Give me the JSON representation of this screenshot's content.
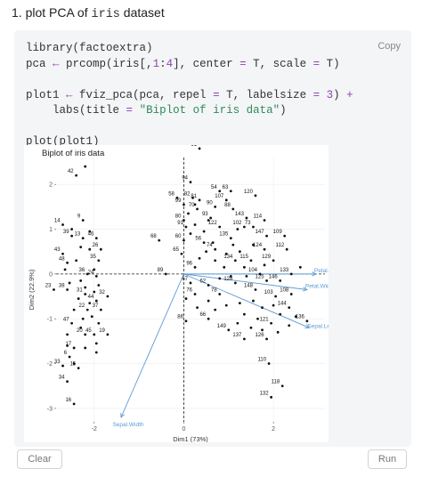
{
  "heading": {
    "prefix": "1. plot PCA of",
    "code": "iris",
    "suffix": "dataset"
  },
  "code_panel": {
    "copy_label": "Copy",
    "lines": [
      [
        [
          "library(factoextra)",
          ""
        ]
      ],
      [
        [
          "pca ",
          ""
        ],
        [
          "←",
          "op"
        ],
        [
          " prcomp(iris[,",
          ""
        ],
        [
          "1",
          "num"
        ],
        [
          ":",
          ""
        ],
        [
          "4",
          "num"
        ],
        [
          "], center ",
          ""
        ],
        [
          "=",
          "op"
        ],
        [
          " T, scale ",
          ""
        ],
        [
          "=",
          "op"
        ],
        [
          " T)",
          ""
        ]
      ],
      [
        [
          "",
          ""
        ]
      ],
      [
        [
          "plot1 ",
          ""
        ],
        [
          "←",
          "op"
        ],
        [
          " fviz_pca(pca, repel ",
          ""
        ],
        [
          "=",
          "op"
        ],
        [
          " T, labelsize ",
          ""
        ],
        [
          "=",
          "op"
        ],
        [
          " ",
          ""
        ],
        [
          "3",
          "num"
        ],
        [
          ") ",
          ""
        ],
        [
          "+",
          "op"
        ]
      ],
      [
        [
          "    labs(title ",
          ""
        ],
        [
          "=",
          "op"
        ],
        [
          " ",
          ""
        ],
        [
          "\"Biplot of iris data\"",
          "str"
        ],
        [
          ")",
          ""
        ]
      ],
      [
        [
          "",
          ""
        ]
      ],
      [
        [
          "plot(plot1)",
          ""
        ]
      ]
    ]
  },
  "chart_data": {
    "type": "scatter",
    "title": "Biplot of iris data",
    "xlabel": "Dim1 (73%)",
    "ylabel": "Dim2 (22.9%)",
    "xlim": [
      -2.85,
      3.15
    ],
    "ylim": [
      -3.3,
      2.6
    ],
    "x_ticks": [
      -2,
      0,
      2
    ],
    "y_ticks": [
      -3,
      -2,
      -1,
      0,
      1,
      2
    ],
    "reference_lines": {
      "x": 0,
      "y": 0
    },
    "arrow_color": "#5b9bd5",
    "point_color": "#111111",
    "variables": [
      {
        "name": "Sepal.Width",
        "x": -1.4,
        "y": -3.2
      },
      {
        "name": "Sepal.Length",
        "x": 2.8,
        "y": -1.2
      },
      {
        "name": "Petal.Width",
        "x": 2.75,
        "y": -0.35
      },
      {
        "name": "Petal.Length",
        "x": 2.95,
        "y": 0.0
      }
    ],
    "labeled_points": [
      {
        "label": "42",
        "x": -2.4,
        "y": 2.2
      },
      {
        "label": "94",
        "x": 0.15,
        "y": 2.05
      },
      {
        "label": "61",
        "x": 0.35,
        "y": 2.8
      },
      {
        "label": "58",
        "x": -0.15,
        "y": 1.7
      },
      {
        "label": "82",
        "x": 0.2,
        "y": 1.7
      },
      {
        "label": "81",
        "x": 0.35,
        "y": 1.65
      },
      {
        "label": "54",
        "x": 0.8,
        "y": 1.85
      },
      {
        "label": "63",
        "x": 1.05,
        "y": 1.85
      },
      {
        "label": "107",
        "x": 0.95,
        "y": 1.65
      },
      {
        "label": "120",
        "x": 1.6,
        "y": 1.75
      },
      {
        "label": "99",
        "x": 0.0,
        "y": 1.55
      },
      {
        "label": "70",
        "x": 0.3,
        "y": 1.45
      },
      {
        "label": "90",
        "x": 0.7,
        "y": 1.5
      },
      {
        "label": "88",
        "x": 1.1,
        "y": 1.45
      },
      {
        "label": "9",
        "x": -2.25,
        "y": 1.2
      },
      {
        "label": "14",
        "x": -2.7,
        "y": 1.1
      },
      {
        "label": "13",
        "x": -2.25,
        "y": 0.8
      },
      {
        "label": "46",
        "x": -1.95,
        "y": 0.8
      },
      {
        "label": "39",
        "x": -2.5,
        "y": 0.85
      },
      {
        "label": "80",
        "x": 0.0,
        "y": 1.2
      },
      {
        "label": "91",
        "x": 0.05,
        "y": 1.05
      },
      {
        "label": "93",
        "x": 0.6,
        "y": 1.25
      },
      {
        "label": "122",
        "x": 0.8,
        "y": 1.05
      },
      {
        "label": "102",
        "x": 1.35,
        "y": 1.05
      },
      {
        "label": "73",
        "x": 1.55,
        "y": 1.05
      },
      {
        "label": "114",
        "x": 1.8,
        "y": 1.2
      },
      {
        "label": "143",
        "x": 1.4,
        "y": 1.25
      },
      {
        "label": "109",
        "x": 2.25,
        "y": 0.85
      },
      {
        "label": "43",
        "x": -2.7,
        "y": 0.45
      },
      {
        "label": "26",
        "x": -1.85,
        "y": 0.55
      },
      {
        "label": "48",
        "x": -2.6,
        "y": 0.25
      },
      {
        "label": "35",
        "x": -1.9,
        "y": 0.3
      },
      {
        "label": "68",
        "x": -0.55,
        "y": 0.75
      },
      {
        "label": "60",
        "x": 0.0,
        "y": 0.75
      },
      {
        "label": "65",
        "x": -0.05,
        "y": 0.45
      },
      {
        "label": "56",
        "x": 0.45,
        "y": 0.7
      },
      {
        "label": "74",
        "x": 0.7,
        "y": 0.55
      },
      {
        "label": "135",
        "x": 1.05,
        "y": 0.8
      },
      {
        "label": "147",
        "x": 1.85,
        "y": 0.85
      },
      {
        "label": "112",
        "x": 2.3,
        "y": 0.55
      },
      {
        "label": "124",
        "x": 1.8,
        "y": 0.55
      },
      {
        "label": "115",
        "x": 1.5,
        "y": 0.3
      },
      {
        "label": "129",
        "x": 2.0,
        "y": 0.3
      },
      {
        "label": "36",
        "x": -2.15,
        "y": 0.0
      },
      {
        "label": "24",
        "x": -1.95,
        "y": -0.05
      },
      {
        "label": "89",
        "x": -0.4,
        "y": 0.0
      },
      {
        "label": "96",
        "x": 0.25,
        "y": 0.15
      },
      {
        "label": "134",
        "x": 1.15,
        "y": 0.3
      },
      {
        "label": "104",
        "x": 1.7,
        "y": 0.0
      },
      {
        "label": "133",
        "x": 2.4,
        "y": 0.0
      },
      {
        "label": "23",
        "x": -2.9,
        "y": -0.35
      },
      {
        "label": "38",
        "x": -2.6,
        "y": -0.35
      },
      {
        "label": "67",
        "x": 0.15,
        "y": -0.2
      },
      {
        "label": "62",
        "x": 0.55,
        "y": -0.25
      },
      {
        "label": "128",
        "x": 1.15,
        "y": -0.2
      },
      {
        "label": "125",
        "x": 1.85,
        "y": -0.15
      },
      {
        "label": "146",
        "x": 2.15,
        "y": -0.15
      },
      {
        "label": "31",
        "x": -2.2,
        "y": -0.45
      },
      {
        "label": "32",
        "x": -1.7,
        "y": -0.5
      },
      {
        "label": "76",
        "x": 0.25,
        "y": -0.45
      },
      {
        "label": "78",
        "x": 0.8,
        "y": -0.45
      },
      {
        "label": "148",
        "x": 1.6,
        "y": -0.35
      },
      {
        "label": "108",
        "x": 2.4,
        "y": -0.45
      },
      {
        "label": "44",
        "x": -1.95,
        "y": -0.6
      },
      {
        "label": "103",
        "x": 2.05,
        "y": -0.5
      },
      {
        "label": "47",
        "x": -2.5,
        "y": -1.1
      },
      {
        "label": "22",
        "x": -2.15,
        "y": -0.8
      },
      {
        "label": "37",
        "x": -1.85,
        "y": -0.8
      },
      {
        "label": "86",
        "x": 0.05,
        "y": -1.05
      },
      {
        "label": "66",
        "x": 0.55,
        "y": -1.0
      },
      {
        "label": "149",
        "x": 1.0,
        "y": -1.25
      },
      {
        "label": "137",
        "x": 1.35,
        "y": -1.45
      },
      {
        "label": "126",
        "x": 1.85,
        "y": -1.45
      },
      {
        "label": "121",
        "x": 1.95,
        "y": -1.1
      },
      {
        "label": "144",
        "x": 2.35,
        "y": -0.75
      },
      {
        "label": "136",
        "x": 2.75,
        "y": -1.05
      },
      {
        "label": "20",
        "x": -2.2,
        "y": -1.35
      },
      {
        "label": "45",
        "x": -2.0,
        "y": -1.35
      },
      {
        "label": "19",
        "x": -1.7,
        "y": -1.35
      },
      {
        "label": "17",
        "x": -2.45,
        "y": -1.65
      },
      {
        "label": "6",
        "x": -2.55,
        "y": -1.85
      },
      {
        "label": "33",
        "x": -2.7,
        "y": -2.05
      },
      {
        "label": "15",
        "x": -2.35,
        "y": -2.1
      },
      {
        "label": "34",
        "x": -2.6,
        "y": -2.4
      },
      {
        "label": "16",
        "x": -2.45,
        "y": -2.9
      },
      {
        "label": "110",
        "x": 1.9,
        "y": -2.0
      },
      {
        "label": "118",
        "x": 2.2,
        "y": -2.5
      },
      {
        "label": "132",
        "x": 1.95,
        "y": -2.75
      }
    ],
    "unlabeled_points": [
      [
        -2.5,
        1.0
      ],
      [
        -2.1,
        0.95
      ],
      [
        -2.3,
        0.6
      ],
      [
        -2.1,
        0.55
      ],
      [
        -2.4,
        0.3
      ],
      [
        -2.0,
        0.1
      ],
      [
        -2.3,
        -0.15
      ],
      [
        -2.55,
        -0.2
      ],
      [
        -1.9,
        -0.25
      ],
      [
        -2.2,
        -0.3
      ],
      [
        -2.0,
        -0.4
      ],
      [
        -2.35,
        -0.55
      ],
      [
        -2.1,
        -0.65
      ],
      [
        -2.45,
        -0.8
      ],
      [
        -2.05,
        -0.95
      ],
      [
        -2.25,
        -1.0
      ],
      [
        -1.9,
        -1.1
      ],
      [
        -2.3,
        -1.2
      ],
      [
        -2.6,
        -1.35
      ],
      [
        -1.95,
        -1.55
      ],
      [
        -2.2,
        -1.65
      ],
      [
        -1.95,
        -1.75
      ],
      [
        -2.6,
        -1.6
      ],
      [
        -2.45,
        -2.0
      ],
      [
        -2.2,
        2.4
      ],
      [
        -2.65,
        0.1
      ],
      [
        0.1,
        1.35
      ],
      [
        0.25,
        1.1
      ],
      [
        0.45,
        0.95
      ],
      [
        0.15,
        0.9
      ],
      [
        0.5,
        0.5
      ],
      [
        0.35,
        0.35
      ],
      [
        0.7,
        0.3
      ],
      [
        0.95,
        0.45
      ],
      [
        0.9,
        0.15
      ],
      [
        1.25,
        0.5
      ],
      [
        1.35,
        0.15
      ],
      [
        1.55,
        0.65
      ],
      [
        0.8,
        -0.1
      ],
      [
        1.05,
        -0.05
      ],
      [
        1.4,
        -0.05
      ],
      [
        0.55,
        -0.6
      ],
      [
        0.95,
        -0.7
      ],
      [
        1.25,
        -0.65
      ],
      [
        1.55,
        -0.6
      ],
      [
        1.75,
        -0.75
      ],
      [
        2.0,
        -0.7
      ],
      [
        1.35,
        -0.9
      ],
      [
        1.65,
        -1.0
      ],
      [
        2.15,
        -0.9
      ],
      [
        2.5,
        -0.95
      ],
      [
        1.2,
        -1.1
      ],
      [
        1.5,
        -1.2
      ],
      [
        1.75,
        -1.25
      ],
      [
        2.1,
        -1.3
      ],
      [
        2.35,
        -1.15
      ],
      [
        0.3,
        -0.75
      ],
      [
        0.05,
        -0.55
      ],
      [
        0.7,
        -0.8
      ],
      [
        1.8,
        0.2
      ],
      [
        2.6,
        0.15
      ],
      [
        0.55,
        1.2
      ],
      [
        1.2,
        1.0
      ],
      [
        0.25,
        1.55
      ],
      [
        0.65,
        0.7
      ],
      [
        1.1,
        0.65
      ]
    ]
  }
}
